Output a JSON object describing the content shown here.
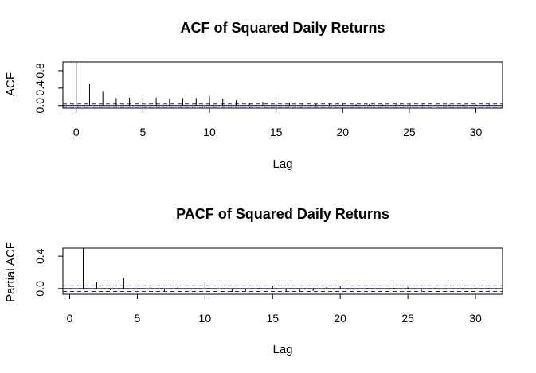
{
  "chart_data": [
    {
      "type": "bar",
      "title": "ACF of Squared Daily Returns",
      "xlabel": "Lag",
      "ylabel": "ACF",
      "xticks": [
        "0",
        "5",
        "10",
        "15",
        "20",
        "25",
        "30"
      ],
      "yticks": [
        "0.0",
        "0.4",
        "0.8"
      ],
      "xlim": [
        -1,
        32
      ],
      "ylim": [
        -0.06,
        1.0
      ],
      "ci": [
        0.035,
        -0.035
      ],
      "lags": [
        0,
        1,
        2,
        3,
        4,
        5,
        6,
        7,
        8,
        9,
        10,
        11,
        12,
        13,
        14,
        15,
        16,
        17,
        18,
        19,
        20,
        21,
        22,
        23,
        24,
        25,
        26,
        27,
        28,
        29,
        30,
        31
      ],
      "values": [
        1.0,
        0.5,
        0.32,
        0.17,
        0.18,
        0.17,
        0.18,
        0.15,
        0.17,
        0.17,
        0.22,
        0.16,
        0.12,
        0.06,
        0.08,
        0.11,
        0.07,
        0.06,
        0.04,
        0.03,
        0.03,
        0.03,
        0.03,
        0.02,
        0.02,
        0.03,
        0.02,
        0.02,
        0.02,
        0.02,
        0.02,
        0.02
      ]
    },
    {
      "type": "bar",
      "title": "PACF of Squared Daily Returns",
      "xlabel": "Lag",
      "ylabel": "Partial ACF",
      "xticks": [
        "0",
        "5",
        "10",
        "15",
        "20",
        "25",
        "30"
      ],
      "yticks": [
        "0.0",
        "0.4"
      ],
      "xlim": [
        -0.5,
        32
      ],
      "ylim": [
        -0.07,
        0.5
      ],
      "ci": [
        0.035,
        -0.035
      ],
      "lags": [
        1,
        2,
        3,
        4,
        5,
        6,
        7,
        8,
        9,
        10,
        11,
        12,
        13,
        14,
        15,
        16,
        17,
        18,
        19,
        20,
        21,
        22,
        23,
        24,
        25,
        26,
        27,
        28,
        29,
        30,
        31
      ],
      "values": [
        0.5,
        0.08,
        -0.02,
        0.13,
        -0.01,
        0.02,
        -0.03,
        0.04,
        -0.01,
        0.09,
        -0.01,
        -0.04,
        -0.03,
        0.01,
        0.03,
        -0.04,
        -0.04,
        -0.03,
        0.02,
        0.03,
        -0.02,
        0.01,
        -0.01,
        0.01,
        0.02,
        -0.03,
        0.01,
        -0.01,
        0.0,
        0.01,
        0.01
      ]
    }
  ],
  "colors": {
    "ci_line": "#1f1fa8",
    "spike": "#000000",
    "frame": "#000000"
  }
}
